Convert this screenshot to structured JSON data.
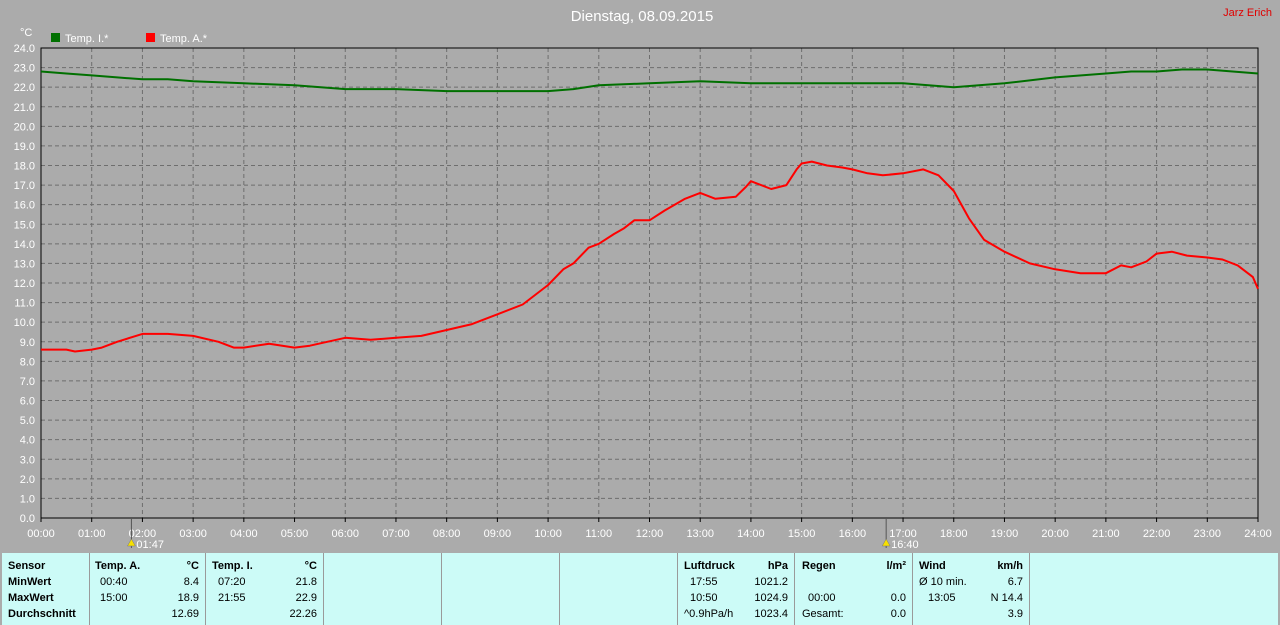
{
  "chart_data": {
    "type": "line",
    "title": "Dienstag, 08.09.2015",
    "author": "Jarz Erich",
    "y_unit": "°C",
    "ylim": [
      0,
      24
    ],
    "y_ticks": [
      "0.0",
      "1.0",
      "2.0",
      "3.0",
      "4.0",
      "5.0",
      "6.0",
      "7.0",
      "8.0",
      "9.0",
      "10.0",
      "11.0",
      "12.0",
      "13.0",
      "14.0",
      "15.0",
      "16.0",
      "17.0",
      "18.0",
      "19.0",
      "20.0",
      "21.0",
      "22.0",
      "23.0",
      "24.0"
    ],
    "x_ticks": [
      "00:00",
      "01:00",
      "02:00",
      "03:00",
      "04:00",
      "05:00",
      "06:00",
      "07:00",
      "08:00",
      "09:00",
      "10:00",
      "11:00",
      "12:00",
      "13:00",
      "14:00",
      "15:00",
      "16:00",
      "17:00",
      "18:00",
      "19:00",
      "20:00",
      "21:00",
      "22:00",
      "23:00",
      "24:00"
    ],
    "xlim": [
      0,
      24
    ],
    "grid": true,
    "legend_placement": "top-left",
    "markers": [
      {
        "time": 1.783,
        "label": "01:47",
        "icon": "sunrise-icon"
      },
      {
        "time": 16.667,
        "label": "16:40",
        "icon": "sunset-icon"
      }
    ],
    "series": [
      {
        "name": "Temp. I.*",
        "color": "#007000",
        "x": [
          0,
          0.5,
          1,
          1.5,
          2,
          2.5,
          3,
          4,
          5,
          6,
          7,
          8,
          9,
          10,
          10.5,
          11,
          12,
          13,
          14,
          15,
          16,
          17,
          17.5,
          18,
          18.5,
          19,
          20,
          21,
          21.5,
          22,
          22.5,
          23,
          23.5,
          24
        ],
        "y": [
          22.8,
          22.7,
          22.6,
          22.5,
          22.4,
          22.4,
          22.3,
          22.2,
          22.1,
          21.9,
          21.9,
          21.8,
          21.8,
          21.8,
          21.9,
          22.1,
          22.2,
          22.3,
          22.2,
          22.2,
          22.2,
          22.2,
          22.1,
          22.0,
          22.1,
          22.2,
          22.5,
          22.7,
          22.8,
          22.8,
          22.9,
          22.9,
          22.8,
          22.7
        ]
      },
      {
        "name": "Temp. A.*",
        "color": "#ff0000",
        "x": [
          0,
          0.5,
          0.67,
          1,
          1.2,
          1.5,
          2,
          2.5,
          3,
          3.5,
          3.8,
          4,
          4.5,
          5,
          5.3,
          6,
          6.5,
          7,
          7.5,
          8,
          8.5,
          9,
          9.5,
          10,
          10.3,
          10.5,
          10.8,
          11,
          11.3,
          11.5,
          11.7,
          12,
          12.3,
          12.7,
          13,
          13.3,
          13.7,
          13.9,
          14,
          14.4,
          14.7,
          14.9,
          15,
          15.2,
          15.5,
          15.8,
          16,
          16.3,
          16.6,
          17,
          17.4,
          17.7,
          18,
          18.3,
          18.6,
          19,
          19.5,
          20,
          20.5,
          21,
          21.3,
          21.5,
          21.8,
          22,
          22.3,
          22.6,
          23,
          23.3,
          23.6,
          23.9,
          24
        ],
        "y": [
          8.6,
          8.6,
          8.5,
          8.6,
          8.7,
          9.0,
          9.4,
          9.4,
          9.3,
          9.0,
          8.7,
          8.7,
          8.9,
          8.7,
          8.8,
          9.2,
          9.1,
          9.2,
          9.3,
          9.6,
          9.9,
          10.4,
          10.9,
          11.9,
          12.7,
          13.0,
          13.8,
          14.0,
          14.5,
          14.8,
          15.2,
          15.2,
          15.7,
          16.3,
          16.6,
          16.3,
          16.4,
          16.9,
          17.2,
          16.8,
          17.0,
          17.8,
          18.1,
          18.2,
          18.0,
          17.9,
          17.8,
          17.6,
          17.5,
          17.6,
          17.8,
          17.5,
          16.7,
          15.3,
          14.2,
          13.6,
          13.0,
          12.7,
          12.5,
          12.5,
          12.9,
          12.8,
          13.1,
          13.5,
          13.6,
          13.4,
          13.3,
          13.2,
          12.9,
          12.3,
          11.7
        ]
      }
    ]
  },
  "table": {
    "sensor": {
      "header": "Sensor",
      "rows": [
        "MinWert",
        "MaxWert",
        "Durchschnitt"
      ]
    },
    "temp_a": {
      "header": "Temp. A.",
      "unit": "°C",
      "min_time": "00:40",
      "min_val": "8.4",
      "max_time": "15:00",
      "max_val": "18.9",
      "avg": "12.69"
    },
    "temp_i": {
      "header": "Temp. I.",
      "unit": "°C",
      "min_time": "07:20",
      "min_val": "21.8",
      "max_time": "21:55",
      "max_val": "22.9",
      "avg": "22.26"
    },
    "pressure": {
      "header": "Luftdruck",
      "unit": "hPa",
      "r1_time": "17:55",
      "r1_val": "1021.2",
      "r2_time": "10:50",
      "r2_val": "1024.9",
      "r3_label": "^0.9hPa/h",
      "r3_val": "1023.4"
    },
    "rain": {
      "header": "Regen",
      "unit": "l/m²",
      "r2_time": "00:00",
      "r2_val": "0.0",
      "r3_label": "Gesamt:",
      "r3_val": "0.0"
    },
    "wind": {
      "header": "Wind",
      "unit": "km/h",
      "r1_label": "Ø 10 min.",
      "r1_val": "6.7",
      "r2_time": "13:05",
      "r2_val": "N 14.4",
      "r3_val": "3.9"
    }
  }
}
